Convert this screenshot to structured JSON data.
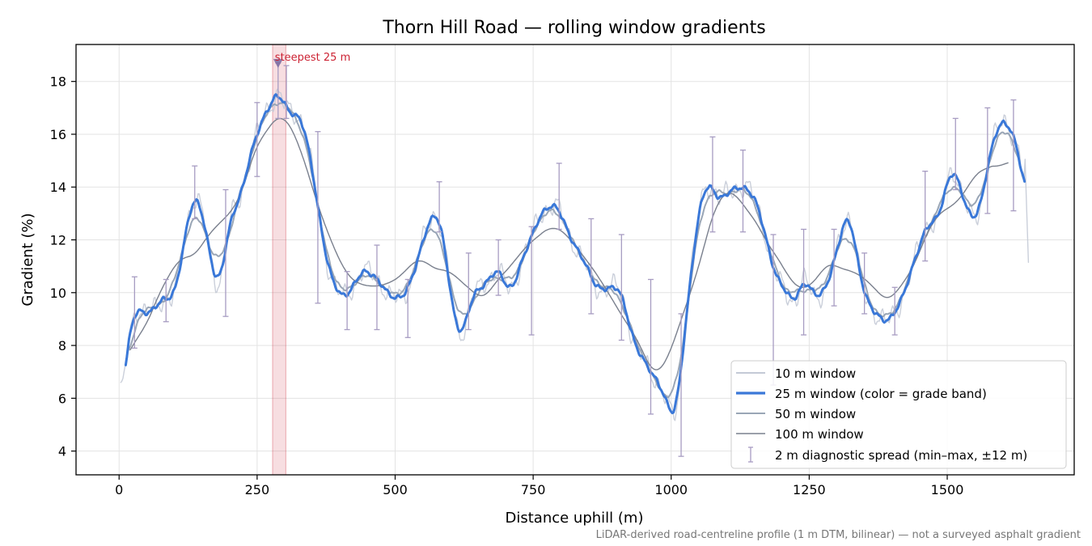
{
  "chart_data": {
    "type": "line",
    "title": "Thorn Hill Road — rolling window gradients",
    "xlabel": "Distance uphill (m)",
    "ylabel": "Gradient (%)",
    "xlim": [
      -78,
      1730
    ],
    "ylim": [
      3.1,
      19.4
    ],
    "xticks": [
      0,
      250,
      500,
      750,
      1000,
      1250,
      1500
    ],
    "yticks": [
      4,
      6,
      8,
      10,
      12,
      14,
      16,
      18
    ],
    "grid": true,
    "legend_position": "lower right",
    "footnote": "LiDAR-derived road-centreline profile (1 m DTM, bilinear) — not a surveyed asphalt gradient",
    "highlight": {
      "x_start": 278,
      "x_end": 302,
      "marker_x": 288,
      "marker_y": 18.7,
      "label": "steepest 25 m",
      "color": "#cc2233"
    },
    "anchor_profile": [
      [
        5,
        6.0
      ],
      [
        12,
        7.4
      ],
      [
        20,
        8.6
      ],
      [
        30,
        9.4
      ],
      [
        45,
        9.2
      ],
      [
        65,
        9.4
      ],
      [
        80,
        9.8
      ],
      [
        95,
        9.7
      ],
      [
        108,
        10.6
      ],
      [
        120,
        12.2
      ],
      [
        130,
        13.3
      ],
      [
        140,
        13.7
      ],
      [
        150,
        13.2
      ],
      [
        160,
        12.0
      ],
      [
        170,
        10.8
      ],
      [
        180,
        10.0
      ],
      [
        190,
        11.3
      ],
      [
        200,
        12.7
      ],
      [
        210,
        13.3
      ],
      [
        220,
        13.5
      ],
      [
        230,
        14.5
      ],
      [
        245,
        15.8
      ],
      [
        260,
        16.6
      ],
      [
        275,
        17.1
      ],
      [
        290,
        17.7
      ],
      [
        300,
        17.1
      ],
      [
        315,
        16.7
      ],
      [
        330,
        16.6
      ],
      [
        340,
        15.9
      ],
      [
        350,
        14.7
      ],
      [
        360,
        13.3
      ],
      [
        370,
        11.8
      ],
      [
        380,
        10.8
      ],
      [
        395,
        10.1
      ],
      [
        410,
        9.8
      ],
      [
        425,
        10.2
      ],
      [
        440,
        10.9
      ],
      [
        455,
        10.8
      ],
      [
        470,
        10.4
      ],
      [
        490,
        9.9
      ],
      [
        505,
        9.8
      ],
      [
        520,
        9.9
      ],
      [
        535,
        10.8
      ],
      [
        550,
        12.0
      ],
      [
        565,
        12.9
      ],
      [
        580,
        12.9
      ],
      [
        590,
        11.8
      ],
      [
        600,
        10.0
      ],
      [
        610,
        8.7
      ],
      [
        620,
        8.2
      ],
      [
        630,
        9.0
      ],
      [
        640,
        10.0
      ],
      [
        655,
        10.2
      ],
      [
        670,
        10.4
      ],
      [
        685,
        11.0
      ],
      [
        700,
        10.4
      ],
      [
        710,
        9.9
      ],
      [
        725,
        10.9
      ],
      [
        745,
        12.1
      ],
      [
        765,
        13.0
      ],
      [
        790,
        13.4
      ],
      [
        800,
        13.1
      ],
      [
        815,
        12.1
      ],
      [
        830,
        11.6
      ],
      [
        845,
        11.2
      ],
      [
        855,
        10.6
      ],
      [
        865,
        10.1
      ],
      [
        880,
        10.1
      ],
      [
        895,
        10.3
      ],
      [
        910,
        10.1
      ],
      [
        920,
        9.0
      ],
      [
        935,
        8.0
      ],
      [
        950,
        7.5
      ],
      [
        960,
        7.1
      ],
      [
        970,
        6.7
      ],
      [
        980,
        6.5
      ],
      [
        990,
        6.0
      ],
      [
        1000,
        5.4
      ],
      [
        1010,
        5.3
      ],
      [
        1020,
        7.6
      ],
      [
        1035,
        10.5
      ],
      [
        1045,
        12.5
      ],
      [
        1060,
        14.0
      ],
      [
        1070,
        14.1
      ],
      [
        1080,
        13.7
      ],
      [
        1090,
        13.5
      ],
      [
        1100,
        13.8
      ],
      [
        1115,
        13.9
      ],
      [
        1130,
        14.0
      ],
      [
        1145,
        13.9
      ],
      [
        1160,
        13.1
      ],
      [
        1175,
        11.7
      ],
      [
        1190,
        10.6
      ],
      [
        1205,
        10.2
      ],
      [
        1215,
        9.7
      ],
      [
        1225,
        9.6
      ],
      [
        1240,
        10.6
      ],
      [
        1250,
        10.3
      ],
      [
        1260,
        9.8
      ],
      [
        1275,
        9.9
      ],
      [
        1290,
        10.8
      ],
      [
        1305,
        12.0
      ],
      [
        1320,
        13.1
      ],
      [
        1330,
        12.3
      ],
      [
        1345,
        10.3
      ],
      [
        1360,
        9.4
      ],
      [
        1375,
        9.1
      ],
      [
        1390,
        8.9
      ],
      [
        1405,
        9.2
      ],
      [
        1420,
        9.8
      ],
      [
        1435,
        10.9
      ],
      [
        1450,
        11.8
      ],
      [
        1465,
        12.6
      ],
      [
        1480,
        12.7
      ],
      [
        1490,
        13.3
      ],
      [
        1505,
        14.6
      ],
      [
        1515,
        14.6
      ],
      [
        1530,
        13.5
      ],
      [
        1545,
        12.8
      ],
      [
        1555,
        12.8
      ],
      [
        1565,
        13.7
      ],
      [
        1580,
        15.6
      ],
      [
        1595,
        16.5
      ],
      [
        1610,
        16.4
      ],
      [
        1625,
        15.6
      ],
      [
        1635,
        15.0
      ],
      [
        1640,
        13.6
      ]
    ],
    "series": [
      {
        "name": "10 m window",
        "color": "#c4cad6",
        "x_range": [
          3,
          1648
        ],
        "smoothing_m": 6,
        "noise": 0.45
      },
      {
        "name": "25 m window (color = grade band)",
        "color": "#3a78d8",
        "x_range": [
          12,
          1640
        ],
        "smoothing_m": 10,
        "noise": 0.12
      },
      {
        "name": "50 m window",
        "color": "#9aa6b6",
        "x_range": [
          15,
          1630
        ],
        "smoothing_m": 24,
        "noise": 0.08
      },
      {
        "name": "100 m window",
        "color": "#7a808e",
        "x_range": [
          20,
          1610
        ],
        "smoothing_m": 55,
        "noise": 0.0
      }
    ],
    "errorbar_series": {
      "name": "2 m diagnostic spread (min–max, ±12 m)",
      "color": "#a79cc2",
      "bars": [
        [
          28,
          7.9,
          10.6
        ],
        [
          85,
          8.9,
          10.5
        ],
        [
          137,
          12.8,
          14.8
        ],
        [
          193,
          9.1,
          13.9
        ],
        [
          250,
          14.4,
          17.2
        ],
        [
          288,
          16.6,
          18.7
        ],
        [
          303,
          16.6,
          18.6
        ],
        [
          360,
          9.6,
          16.1
        ],
        [
          413,
          8.6,
          10.8
        ],
        [
          467,
          8.6,
          11.8
        ],
        [
          523,
          8.3,
          10.5
        ],
        [
          580,
          12.3,
          14.2
        ],
        [
          633,
          8.6,
          11.5
        ],
        [
          687,
          9.9,
          12.0
        ],
        [
          747,
          8.4,
          12.5
        ],
        [
          797,
          12.4,
          14.9
        ],
        [
          855,
          9.2,
          12.8
        ],
        [
          910,
          8.2,
          12.2
        ],
        [
          963,
          5.4,
          10.5
        ],
        [
          1018,
          3.8,
          9.2
        ],
        [
          1075,
          12.3,
          15.9
        ],
        [
          1130,
          12.3,
          15.4
        ],
        [
          1185,
          6.5,
          12.2
        ],
        [
          1240,
          8.4,
          12.4
        ],
        [
          1295,
          9.5,
          12.4
        ],
        [
          1350,
          9.2,
          11.5
        ],
        [
          1405,
          8.4,
          10.2
        ],
        [
          1460,
          11.2,
          14.6
        ],
        [
          1515,
          13.9,
          16.6
        ],
        [
          1573,
          13.0,
          17.0
        ],
        [
          1620,
          13.1,
          17.3
        ]
      ]
    }
  }
}
